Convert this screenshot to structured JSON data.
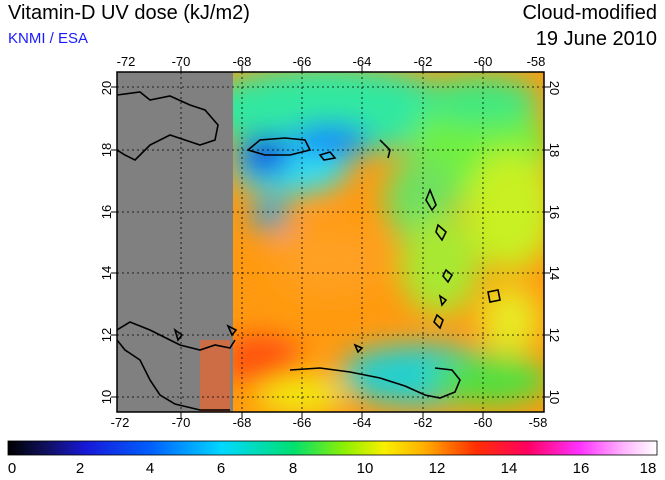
{
  "header": {
    "title": "Vitamin-D UV dose (kJ/m2)",
    "source": "KNMI / ESA",
    "product": "Cloud-modified",
    "date": "19 June 2010"
  },
  "map": {
    "lon_ticks": [
      "-72",
      "-70",
      "-68",
      "-66",
      "-64",
      "-62",
      "-60",
      "-58"
    ],
    "lat_ticks": [
      "10",
      "12",
      "14",
      "16",
      "18",
      "20"
    ],
    "no_data_color": "#808080"
  },
  "colorbar": {
    "labels": [
      "0",
      "2",
      "4",
      "6",
      "8",
      "10",
      "12",
      "14",
      "16",
      "18"
    ],
    "stops": [
      "#000000",
      "#1010d0",
      "#0050ff",
      "#00c8ff",
      "#00e080",
      "#60f000",
      "#f0f000",
      "#ff9000",
      "#ff2000",
      "#ff0080",
      "#ff40ff",
      "#ffb0ff",
      "#ffffff"
    ]
  }
}
